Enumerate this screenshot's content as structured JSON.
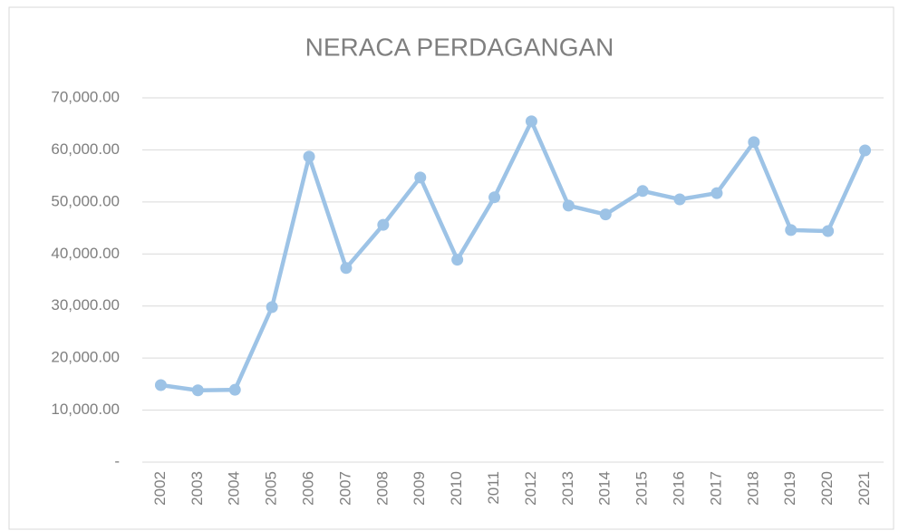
{
  "chart_data": {
    "type": "line",
    "title": "NERACA PERDAGANGAN",
    "categories": [
      "2002",
      "2003",
      "2004",
      "2005",
      "2006",
      "2007",
      "2008",
      "2009",
      "2010",
      "2011",
      "2012",
      "2013",
      "2014",
      "2015",
      "2016",
      "2017",
      "2018",
      "2019",
      "2020",
      "2021"
    ],
    "series": [
      {
        "color": "#9dc3e6",
        "values": [
          14800,
          13800,
          13900,
          29800,
          58700,
          37300,
          45600,
          54700,
          38900,
          50900,
          65500,
          49300,
          47600,
          52100,
          50500,
          51700,
          61500,
          44600,
          44400,
          59900
        ]
      }
    ],
    "ylim": [
      0,
      70000
    ],
    "yticks": [
      {
        "value": 0,
        "label": "-"
      },
      {
        "value": 10000,
        "label": "10,000.00"
      },
      {
        "value": 20000,
        "label": "20,000.00"
      },
      {
        "value": 30000,
        "label": "30,000.00"
      },
      {
        "value": 40000,
        "label": "40,000.00"
      },
      {
        "value": 50000,
        "label": "50,000.00"
      },
      {
        "value": 60000,
        "label": "60,000.00"
      },
      {
        "value": 70000,
        "label": "70,000.00"
      }
    ],
    "grid": true
  }
}
